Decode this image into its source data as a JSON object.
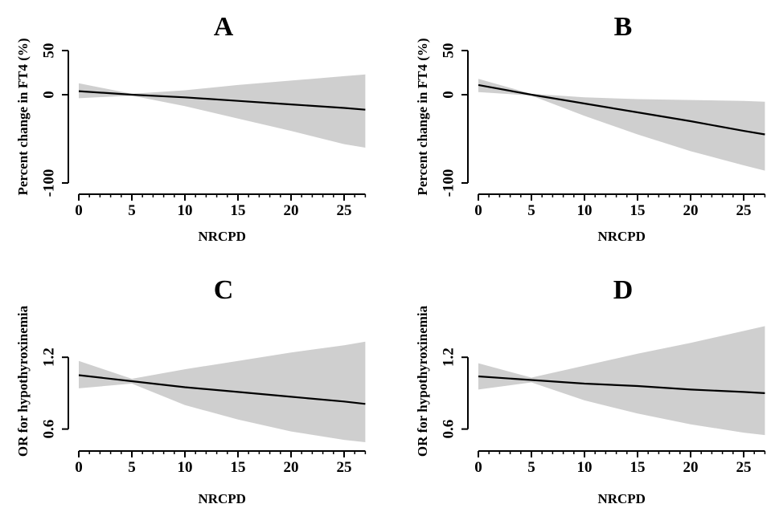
{
  "chart_data": [
    {
      "panel": "A",
      "type": "line",
      "title": "A",
      "xlabel": "NRCPD",
      "ylabel": "Percent change in FT4 (%)",
      "xlim": [
        0,
        27
      ],
      "ylim": [
        -100,
        50
      ],
      "xticks": [
        0,
        5,
        10,
        15,
        20,
        25
      ],
      "yticks": [
        50,
        0,
        -100
      ],
      "grid": false,
      "series": [
        {
          "x": [
            0,
            5,
            10,
            15,
            20,
            25,
            27
          ],
          "y": [
            4,
            0,
            -3,
            -7,
            -11,
            -15,
            -17
          ],
          "lower": [
            -4,
            -1,
            -13,
            -27,
            -41,
            -56,
            -60
          ],
          "upper": [
            13,
            1,
            5,
            11,
            16,
            21,
            23
          ]
        }
      ]
    },
    {
      "panel": "B",
      "type": "line",
      "title": "B",
      "xlabel": "NRCPD",
      "ylabel": "Percent change in FT4 (%)",
      "xlim": [
        0,
        27
      ],
      "ylim": [
        -100,
        50
      ],
      "xticks": [
        0,
        5,
        10,
        15,
        20,
        25
      ],
      "yticks": [
        50,
        0,
        -100
      ],
      "grid": false,
      "series": [
        {
          "x": [
            0,
            5,
            10,
            15,
            20,
            25,
            27
          ],
          "y": [
            11,
            0,
            -10,
            -20,
            -30,
            -41,
            -45
          ],
          "lower": [
            3,
            -1,
            -24,
            -45,
            -64,
            -80,
            -86
          ],
          "upper": [
            18,
            1,
            -3,
            -5,
            -6,
            -7,
            -8
          ]
        }
      ]
    },
    {
      "panel": "C",
      "type": "line",
      "title": "C",
      "xlabel": "NRCPD",
      "ylabel": "OR for hypothyroxinemia",
      "xlim": [
        0,
        27
      ],
      "ylim": [
        0.45,
        1.55
      ],
      "xticks": [
        0,
        5,
        10,
        15,
        20,
        25
      ],
      "yticks": [
        0.6,
        1.2
      ],
      "grid": false,
      "series": [
        {
          "x": [
            0,
            5,
            10,
            15,
            20,
            25,
            27
          ],
          "y": [
            1.05,
            1.0,
            0.95,
            0.91,
            0.87,
            0.83,
            0.81
          ],
          "lower": [
            0.94,
            0.98,
            0.8,
            0.68,
            0.58,
            0.51,
            0.49
          ],
          "upper": [
            1.17,
            1.02,
            1.1,
            1.17,
            1.24,
            1.3,
            1.33
          ]
        }
      ]
    },
    {
      "panel": "D",
      "type": "line",
      "title": "D",
      "xlabel": "NRCPD",
      "ylabel": "OR for hypothyroxinemia",
      "xlim": [
        0,
        27
      ],
      "ylim": [
        0.45,
        1.55
      ],
      "xticks": [
        0,
        5,
        10,
        15,
        20,
        25
      ],
      "yticks": [
        0.6,
        1.2
      ],
      "grid": false,
      "series": [
        {
          "x": [
            0,
            5,
            10,
            15,
            20,
            25,
            27
          ],
          "y": [
            1.04,
            1.01,
            0.98,
            0.96,
            0.93,
            0.91,
            0.9
          ],
          "lower": [
            0.93,
            0.99,
            0.84,
            0.73,
            0.64,
            0.57,
            0.55
          ],
          "upper": [
            1.15,
            1.03,
            1.13,
            1.23,
            1.32,
            1.42,
            1.46
          ]
        }
      ]
    }
  ]
}
